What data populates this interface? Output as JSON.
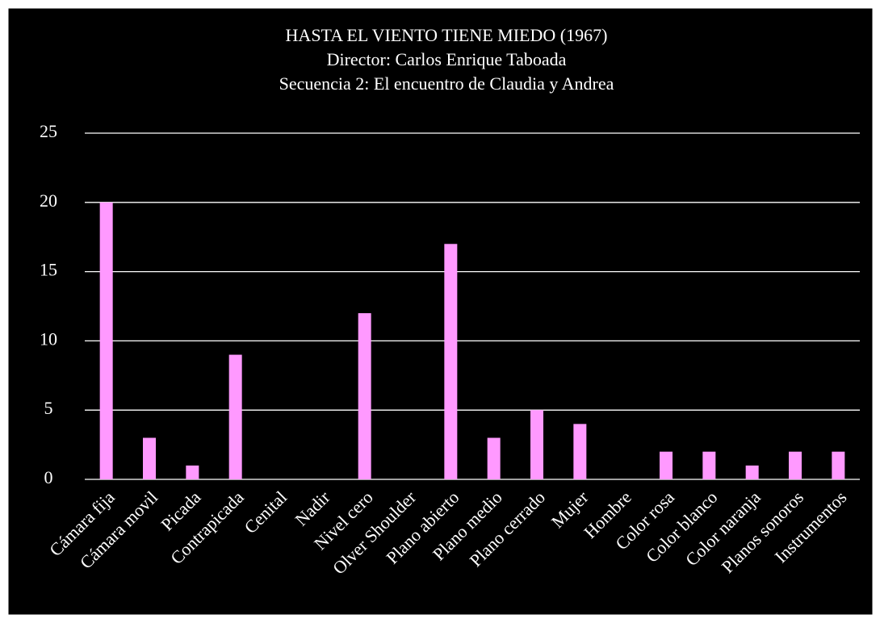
{
  "chart_data": {
    "type": "bar",
    "title": [
      "HASTA EL VIENTO TIENE MIEDO (1967)",
      "Director: Carlos Enrique Taboada",
      "Secuencia 2: El encuentro de Claudia y Andrea"
    ],
    "categories": [
      "Cámara fija",
      "Cámara movil",
      "Picada",
      "Contrapicada",
      "Cenital",
      "Nadir",
      "Nivel cero",
      "Olver Shoulder",
      "Plano abierto",
      "Plano medio",
      "Plano cerrado",
      "Mujer",
      "Hombre",
      "Color rosa",
      "Color blanco",
      "Color naranja",
      "Planos sonoros",
      "Instrumentos"
    ],
    "values": [
      20,
      3,
      1,
      9,
      0,
      0,
      12,
      0,
      17,
      3,
      5,
      4,
      0,
      2,
      2,
      1,
      2,
      2
    ],
    "color": "#ff99ff",
    "ylim": [
      0,
      25
    ],
    "yticks": [
      0,
      5,
      10,
      15,
      20,
      25
    ],
    "grid": true
  }
}
